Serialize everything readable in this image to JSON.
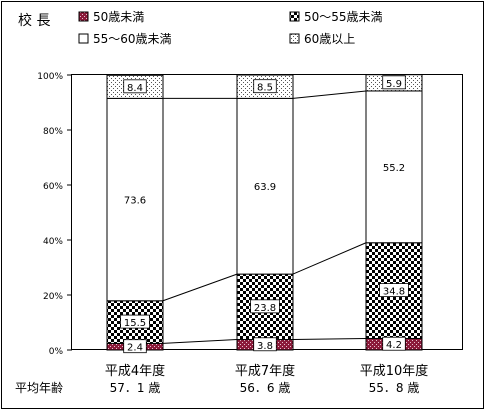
{
  "chart_data": {
    "type": "bar",
    "stacked": true,
    "percent": true,
    "title": "校 長",
    "categories": [
      "平成4年度",
      "平成7年度",
      "平成10年度"
    ],
    "series": [
      {
        "name": "50歳未満",
        "values": [
          2.4,
          3.8,
          4.2
        ]
      },
      {
        "name": "50〜55歳未満",
        "values": [
          15.5,
          23.8,
          34.8
        ]
      },
      {
        "name": "55〜60歳未満",
        "values": [
          73.6,
          63.9,
          55.2
        ]
      },
      {
        "name": "60歳以上",
        "values": [
          8.4,
          8.5,
          5.9
        ]
      }
    ],
    "ylim": [
      0,
      100
    ],
    "ytick_labels": [
      "0%",
      "20%",
      "40%",
      "60%",
      "80%",
      "100%"
    ],
    "average_age": {
      "label": "平均年齢",
      "values": [
        "57．1 歳",
        "56．6 歳",
        "55．8 歳"
      ]
    },
    "legend_position": "top",
    "grid": false
  },
  "colors": {
    "under50": "#8b1a3a",
    "range50_55": "#000000",
    "range55_60": "#ffffff",
    "over60": "#ffffff"
  }
}
